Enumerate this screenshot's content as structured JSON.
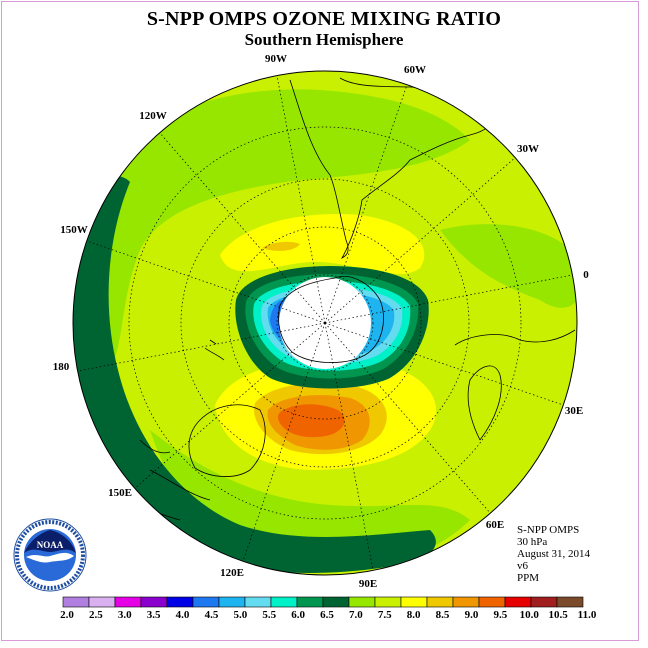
{
  "title": "S-NPP OMPS OZONE MIXING RATIO",
  "subtitle": "Southern Hemisphere",
  "info": [
    "S-NPP OMPS",
    "30 hPa",
    "August 31, 2014",
    "v6",
    "PPM"
  ],
  "longitude_labels": [
    "90W",
    "60W",
    "30W",
    "0",
    "30E",
    "60E",
    "90E",
    "120E",
    "150E",
    "180",
    "150W",
    "120W"
  ],
  "colorbar": {
    "ticks": [
      "2.0",
      "2.5",
      "3.0",
      "3.5",
      "4.0",
      "4.5",
      "5.0",
      "5.5",
      "6.0",
      "6.5",
      "7.0",
      "7.5",
      "8.0",
      "8.5",
      "9.0",
      "9.5",
      "10.0",
      "10.5",
      "11.0"
    ],
    "colors": [
      "#b07fe0",
      "#d9b1f0",
      "#e600e6",
      "#8a00cc",
      "#0000e6",
      "#1e78f0",
      "#1eb4f0",
      "#64dcf0",
      "#00f0c8",
      "#009650",
      "#006432",
      "#96e600",
      "#c8f000",
      "#ffff00",
      "#f0c800",
      "#f09600",
      "#f06400",
      "#e60000",
      "#a01e1e",
      "#7a4a2a"
    ]
  },
  "map_colors": {
    "background": "#c8f000",
    "band_green": "#96e600",
    "dark_band": "#006432",
    "yellow": "#ffff00",
    "orange_light": "#f0c800",
    "orange": "#f09600",
    "red_orange": "#f06400",
    "mid_green": "#009650",
    "cyan": "#00f0c8",
    "light_blue": "#64dcf0",
    "blue": "#1eb4f0",
    "deep_blue": "#1e78f0"
  },
  "logo": {
    "text": "NOAA"
  }
}
